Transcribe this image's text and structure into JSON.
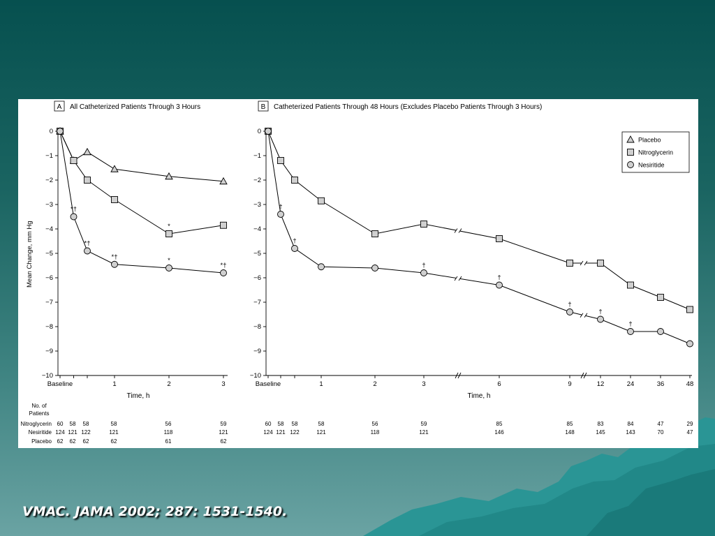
{
  "slide": {
    "citation": "VMAC. JAMA 2002; 287: 1531-1540.",
    "colors": {
      "background_top": "#06504f",
      "background_bottom": "#6aa3a3",
      "mountain": "#2a9595"
    }
  },
  "chart_data": [
    {
      "panel_letter": "A",
      "title": "All Catheterized Patients Through 3 Hours",
      "type": "line",
      "xlabel": "Time, h",
      "ylabel": "Mean Change, mm Hg",
      "ylim": [
        -10,
        0
      ],
      "yticks": [
        "0",
        "−1",
        "−2",
        "−3",
        "−4",
        "−5",
        "−6",
        "−7",
        "−8",
        "−9",
        "−10"
      ],
      "xticks": [
        "Baseline",
        "1",
        "2",
        "3"
      ],
      "x": [
        0,
        0.25,
        0.5,
        1,
        2,
        3
      ],
      "series": [
        {
          "name": "Placebo",
          "marker": "triangle",
          "values": [
            0,
            -1.2,
            -0.85,
            -1.55,
            -1.85,
            -2.05
          ]
        },
        {
          "name": "Nitroglycerin",
          "marker": "square",
          "values": [
            0,
            -1.2,
            -2.0,
            -2.8,
            -4.2,
            -3.85
          ]
        },
        {
          "name": "Nesiritide",
          "marker": "circle",
          "values": [
            0,
            -3.5,
            -4.9,
            -5.45,
            -5.6,
            -5.8
          ]
        }
      ],
      "annotations": [
        {
          "text": "*†",
          "series": "Nesiritide",
          "index": 1
        },
        {
          "text": "*†",
          "series": "Nesiritide",
          "index": 2
        },
        {
          "text": "*†",
          "series": "Nesiritide",
          "index": 3
        },
        {
          "text": "*",
          "series": "Nesiritide",
          "index": 4
        },
        {
          "text": "*†",
          "series": "Nesiritide",
          "index": 5
        },
        {
          "text": "*",
          "series": "Nitroglycerin",
          "index": 4
        }
      ],
      "patients_header": [
        "No. of",
        "Patients"
      ],
      "patients": [
        {
          "label": "Nitroglycerin",
          "counts": [
            "60",
            "58",
            "58",
            "58",
            "56",
            "59"
          ]
        },
        {
          "label": "Nesiritide",
          "counts": [
            "124",
            "121",
            "122",
            "121",
            "118",
            "121"
          ]
        },
        {
          "label": "Placebo",
          "counts": [
            "62",
            "62",
            "62",
            "62",
            "61",
            "62"
          ]
        }
      ]
    },
    {
      "panel_letter": "B",
      "title": "Catheterized Patients Through 48 Hours (Excludes Placebo Patients Through 3 Hours)",
      "type": "line",
      "xlabel": "Time, h",
      "ylim": [
        -10,
        0
      ],
      "yticks": [
        "0",
        "−1",
        "−2",
        "−3",
        "−4",
        "−5",
        "−6",
        "−7",
        "−8",
        "−9",
        "−10"
      ],
      "x": [
        "Baseline",
        "0.25",
        "0.5",
        "1",
        "2",
        "3",
        "6",
        "9",
        "12",
        "24",
        "36",
        "48"
      ],
      "xtick_labels": [
        "Baseline",
        "1",
        "2",
        "3",
        "6",
        "9",
        "12",
        "24",
        "36",
        "48"
      ],
      "legend": {
        "position": "top-right",
        "entries": [
          {
            "name": "Placebo",
            "marker": "triangle"
          },
          {
            "name": "Nitroglycerin",
            "marker": "square"
          },
          {
            "name": "Nesiritide",
            "marker": "circle"
          }
        ]
      },
      "series": [
        {
          "name": "Nitroglycerin",
          "marker": "square",
          "values": [
            0,
            -1.2,
            -2.0,
            -2.85,
            -4.2,
            -3.8,
            -4.4,
            -5.4,
            -5.4,
            -6.3,
            -6.8,
            -7.3
          ]
        },
        {
          "name": "Nesiritide",
          "marker": "circle",
          "values": [
            0,
            -3.4,
            -4.8,
            -5.55,
            -5.6,
            -5.8,
            -6.3,
            -7.4,
            -7.7,
            -8.2,
            -8.2,
            -8.7
          ]
        }
      ],
      "annotations": [
        {
          "text": "†",
          "series": "Nesiritide",
          "index": 1
        },
        {
          "text": "†",
          "series": "Nesiritide",
          "index": 2
        },
        {
          "text": "†",
          "series": "Nesiritide",
          "index": 5
        },
        {
          "text": "†",
          "series": "Nesiritide",
          "index": 6
        },
        {
          "text": "†",
          "series": "Nesiritide",
          "index": 7
        },
        {
          "text": "†",
          "series": "Nesiritide",
          "index": 8
        },
        {
          "text": "†",
          "series": "Nesiritide",
          "index": 9
        }
      ],
      "patients": [
        {
          "label": "Nitroglycerin",
          "counts": [
            "60",
            "58",
            "58",
            "58",
            "56",
            "59",
            "85",
            "85",
            "83",
            "84",
            "47",
            "29"
          ]
        },
        {
          "label": "Nesiritide",
          "counts": [
            "124",
            "121",
            "122",
            "121",
            "118",
            "121",
            "146",
            "148",
            "145",
            "143",
            "70",
            "47"
          ]
        }
      ]
    }
  ]
}
